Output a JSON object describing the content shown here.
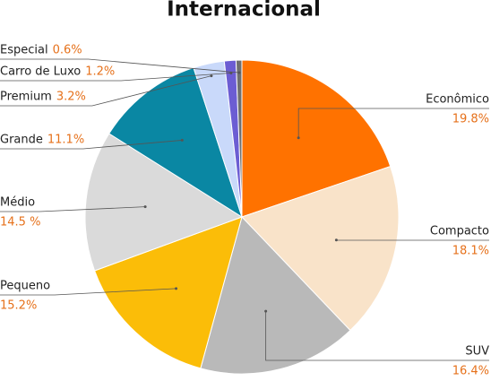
{
  "chart_data": {
    "type": "pie",
    "title": "Internacional",
    "categories": [
      "Econômico",
      "Compacto",
      "SUV",
      "Pequeno",
      "Médio",
      "Grande",
      "Premium",
      "Carro de Luxo",
      "Especial"
    ],
    "values": [
      19.8,
      18.1,
      16.4,
      15.2,
      14.5,
      11.1,
      3.2,
      1.2,
      0.6
    ],
    "value_labels": [
      "19.8%",
      "18.1%",
      "16.4%",
      "15.2%",
      "14.5 %",
      "11.1%",
      "3.2%",
      "1.2%",
      "0.6%"
    ],
    "colors": [
      "#ff7200",
      "#f9e3c9",
      "#b9b9b9",
      "#fbbd08",
      "#dadada",
      "#0a87a3",
      "#c9d9fa",
      "#6c5dd3",
      "#6f6f6f"
    ]
  }
}
